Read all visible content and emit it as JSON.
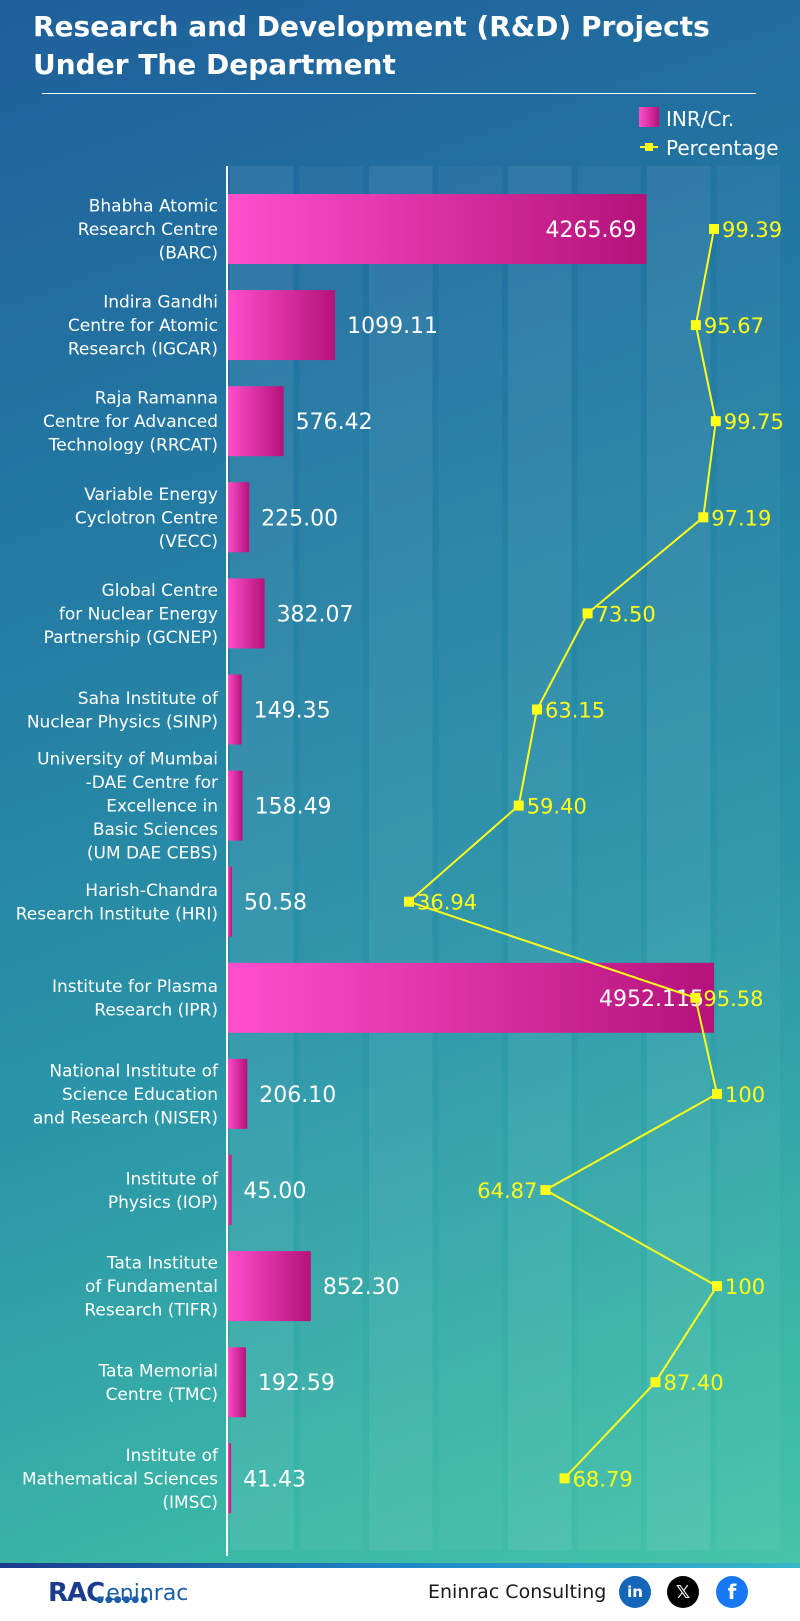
{
  "title": "Research and Development (R&D) Projects Under The Department",
  "legend": {
    "bar_label": "INR/Cr.",
    "line_label": "Percentage"
  },
  "colors": {
    "bar_start": "#ff4fcd",
    "bar_end": "#b5127a",
    "line": "#ffff1a",
    "text": "#ffffff"
  },
  "chart_data": {
    "type": "bar",
    "orientation": "horizontal",
    "title": "Research and Development (R&D) Projects Under The Department",
    "categories": [
      "Bhabha Atomic Research Centre (BARC)",
      "Indira Gandhi Centre for Atomic Research (IGCAR)",
      "Raja Ramanna Centre for Advanced Technology (RRCAT)",
      "Variable Energy Cyclotron Centre (VECC)",
      "Global Centre for Nuclear Energy Partnership (GCNEP)",
      "Saha Institute of Nuclear Physics (SINP)",
      "University of Mumbai -DAE Centre for Excellence in Basic Sciences (UM DAE CEBS)",
      "Harish-Chandra Research Institute (HRI)",
      "Institute for Plasma Research (IPR)",
      "National Institute of Science Education and Research (NISER)",
      "Institute of Physics (IOP)",
      "Tata Institute of Fundamental Research (TIFR)",
      "Tata Memorial Centre (TMC)",
      "Institute of Mathematical Sciences (IMSC)"
    ],
    "category_lines": [
      [
        "Bhabha Atomic",
        "Research Centre",
        "(BARC)"
      ],
      [
        "Indira Gandhi",
        "Centre for Atomic",
        "Research (IGCAR)"
      ],
      [
        "Raja Ramanna",
        "Centre for Advanced",
        "Technology (RRCAT)"
      ],
      [
        "Variable Energy",
        "Cyclotron Centre",
        "(VECC)"
      ],
      [
        "Global Centre",
        "for Nuclear Energy",
        "Partnership (GCNEP)"
      ],
      [
        "Saha Institute of",
        "Nuclear Physics (SINP)"
      ],
      [
        "University of Mumbai",
        "-DAE Centre for",
        "Excellence in",
        "Basic Sciences",
        "(UM DAE CEBS)"
      ],
      [
        "Harish-Chandra",
        "Research Institute (HRI)"
      ],
      [
        "Institute for Plasma",
        "Research (IPR)"
      ],
      [
        "National Institute of",
        "Science Education",
        "and Research (NISER)"
      ],
      [
        "Institute of",
        "Physics (IOP)"
      ],
      [
        "Tata Institute",
        "of Fundamental",
        "Research (TIFR)"
      ],
      [
        "Tata Memorial",
        "Centre (TMC)"
      ],
      [
        "Institute of",
        "Mathematical Sciences",
        "(IMSC)"
      ]
    ],
    "series": [
      {
        "name": "INR/Cr.",
        "type": "bar",
        "values": [
          4265.69,
          1099.11,
          576.42,
          225.0,
          382.07,
          149.35,
          158.49,
          50.58,
          4952.115,
          206.1,
          45.0,
          852.3,
          192.59,
          41.43
        ],
        "labels": [
          "4265.69",
          "1099.11",
          "576.42",
          "225.00",
          "382.07",
          "149.35",
          "158.49",
          "50.58",
          "4952.115",
          "206.10",
          "45.00",
          "852.30",
          "192.59",
          "41.43"
        ]
      },
      {
        "name": "Percentage",
        "type": "line",
        "values": [
          99.39,
          95.67,
          99.75,
          97.19,
          73.5,
          63.15,
          59.4,
          36.94,
          95.58,
          100,
          64.87,
          100,
          87.4,
          68.79
        ],
        "labels": [
          "99.39",
          "95.67",
          "99.75",
          "97.19",
          "73.50",
          "63.15",
          "59.40",
          "36.94",
          "95.58",
          "100",
          "64.87",
          "100",
          "87.40",
          "68.79"
        ]
      }
    ],
    "grid": true,
    "legend_position": "top-right"
  },
  "footer": {
    "brand_rac": "RAC",
    "brand_eninrac": "eninrac",
    "company": "Eninrac Consulting",
    "social": [
      "linkedin-icon",
      "x-icon",
      "facebook-icon"
    ]
  }
}
